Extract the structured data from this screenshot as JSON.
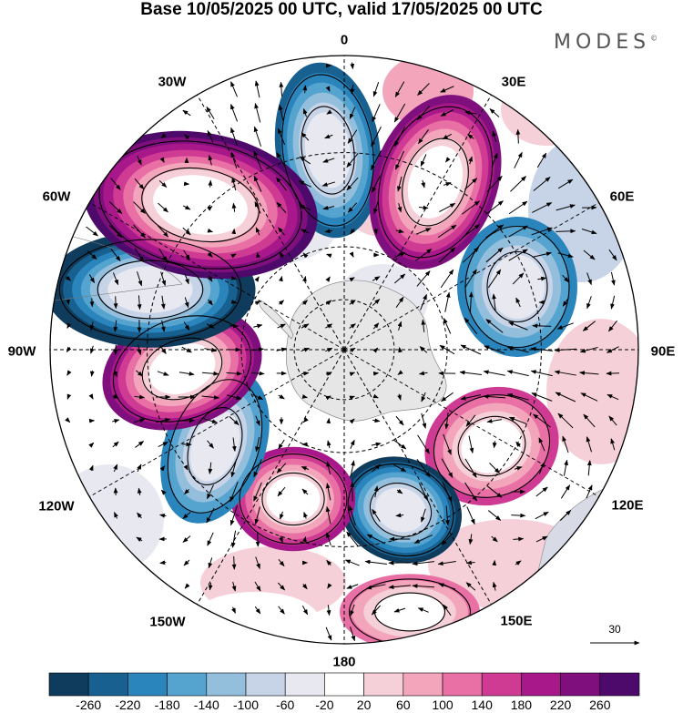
{
  "title": "Base 10/05/2025 00 UTC, valid 17/05/2025 00 UTC",
  "brand": "MODES",
  "brand_mark": "©",
  "longitude_labels": {
    "lon_0": "0",
    "lon_30e": "30E",
    "lon_60e": "60E",
    "lon_90e": "90E",
    "lon_120e": "120E",
    "lon_150e": "150E",
    "lon_180": "180",
    "lon_150w": "150W",
    "lon_120w": "120W",
    "lon_90w": "90W",
    "lon_60w": "60W",
    "lon_30w": "30W"
  },
  "legend": {
    "tick_labels": [
      "-260",
      "-220",
      "-180",
      "-140",
      "-100",
      "-60",
      "-20",
      "20",
      "60",
      "100",
      "140",
      "180",
      "220",
      "260"
    ],
    "colors": [
      "#0f3c5c",
      "#17608f",
      "#2b85bd",
      "#55a3cf",
      "#93bfdd",
      "#c7d4e8",
      "#e8e8f1",
      "#ffffff",
      "#f6d0d8",
      "#f2a5bb",
      "#e870a4",
      "#cf3b93",
      "#a8188a",
      "#7e0f7c",
      "#4d0a6b"
    ]
  },
  "reference_vector": {
    "label": "30"
  },
  "colors": {
    "land": "#e2e2e2",
    "ocean_white": "#ffffff",
    "grid": "#000000",
    "arrows": "#000000"
  },
  "anomaly_cells": [
    {
      "name": "trough-south-atlantic",
      "value": -180
    },
    {
      "name": "ridge-southwest-indian",
      "value": 220
    },
    {
      "name": "trough-southern-indian",
      "value": -140
    },
    {
      "name": "ridge-south-of-australia",
      "value": 140
    },
    {
      "name": "trough-ross-sea",
      "value": -220
    },
    {
      "name": "ridge-amundsen-sea",
      "value": 180
    },
    {
      "name": "trough-bellingshausen",
      "value": -140
    },
    {
      "name": "ridge-drake-passage",
      "value": 220
    },
    {
      "name": "trough-south-pacific-east",
      "value": -260
    },
    {
      "name": "ridge-southeast-pacific",
      "value": 260
    },
    {
      "name": "ridge-tasman",
      "value": 100
    }
  ]
}
